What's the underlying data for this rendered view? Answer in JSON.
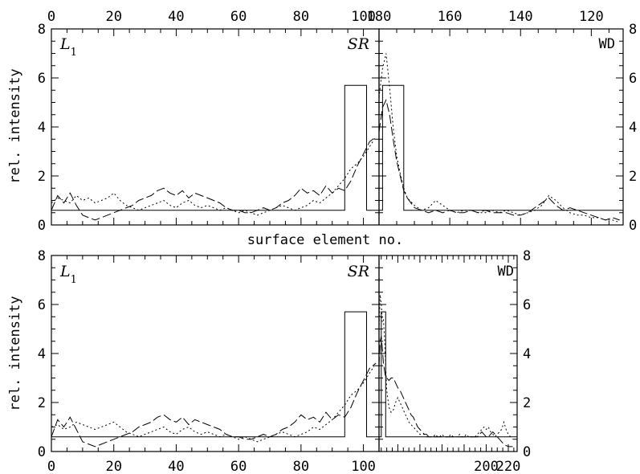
{
  "chart_data": {
    "type": "line",
    "shared_label": "surface element no.",
    "ylabel": "rel. intensity",
    "panels": [
      {
        "id": "top-left",
        "corner_left": "L1",
        "corner_right": "SR",
        "xlim": [
          0,
          105
        ],
        "ylim": [
          0,
          8
        ],
        "xticks_top": [
          0,
          20,
          40,
          60,
          80,
          100
        ],
        "yticks_left": [
          0,
          2,
          4,
          6,
          8
        ],
        "series": [
          {
            "style": "solid",
            "x": [
              0,
              94,
              94,
              101,
              101,
              105
            ],
            "y": [
              0.6,
              0.6,
              5.7,
              5.7,
              0.6,
              0.6
            ]
          },
          {
            "style": "dashed",
            "x": [
              0,
              2,
              4,
              6,
              8,
              10,
              12,
              14,
              16,
              18,
              20,
              22,
              24,
              26,
              28,
              30,
              32,
              34,
              36,
              38,
              40,
              42,
              44,
              46,
              48,
              50,
              52,
              54,
              56,
              58,
              60,
              62,
              64,
              66,
              68,
              70,
              72,
              74,
              76,
              78,
              80,
              82,
              84,
              86,
              88,
              90,
              92,
              94,
              96,
              98,
              100,
              102,
              104
            ],
            "y": [
              0.6,
              1.2,
              0.9,
              1.3,
              0.8,
              0.4,
              0.3,
              0.2,
              0.3,
              0.4,
              0.5,
              0.6,
              0.7,
              0.8,
              1.0,
              1.1,
              1.2,
              1.4,
              1.5,
              1.3,
              1.2,
              1.4,
              1.1,
              1.3,
              1.2,
              1.1,
              1.0,
              0.9,
              0.7,
              0.6,
              0.6,
              0.5,
              0.5,
              0.6,
              0.7,
              0.6,
              0.7,
              0.9,
              1.0,
              1.2,
              1.5,
              1.3,
              1.4,
              1.2,
              1.6,
              1.3,
              1.5,
              1.4,
              1.8,
              2.4,
              2.9,
              3.4,
              3.6
            ]
          },
          {
            "style": "dotted",
            "x": [
              0,
              2,
              4,
              6,
              8,
              10,
              12,
              14,
              16,
              18,
              20,
              22,
              24,
              26,
              28,
              30,
              32,
              34,
              36,
              38,
              40,
              42,
              44,
              46,
              48,
              50,
              52,
              54,
              56,
              58,
              60,
              62,
              64,
              66,
              68,
              70,
              72,
              74,
              76,
              78,
              80,
              82,
              84,
              86,
              88,
              90,
              92,
              94,
              96,
              98,
              100,
              102,
              104
            ],
            "y": [
              0.9,
              1.1,
              1.0,
              0.9,
              1.2,
              1.0,
              1.1,
              0.9,
              1.0,
              1.1,
              1.3,
              1.0,
              0.8,
              0.7,
              0.6,
              0.7,
              0.8,
              0.9,
              1.0,
              0.8,
              0.7,
              0.9,
              1.0,
              0.8,
              0.7,
              0.8,
              0.7,
              0.6,
              0.7,
              0.6,
              0.5,
              0.6,
              0.5,
              0.4,
              0.5,
              0.6,
              0.7,
              0.8,
              0.7,
              0.6,
              0.7,
              0.8,
              1.0,
              0.9,
              1.1,
              1.3,
              1.6,
              1.9,
              2.3,
              2.5,
              2.8,
              3.2,
              3.6
            ]
          }
        ]
      },
      {
        "id": "top-right",
        "corner_right": "WD",
        "xlim": [
          180,
          111
        ],
        "ylim": [
          0,
          8
        ],
        "xticks_top": [
          180,
          160,
          140,
          120
        ],
        "yticks_right": [
          0,
          2,
          4,
          6,
          8
        ],
        "series": [
          {
            "style": "solid",
            "x": [
              180,
              179,
              179,
              173,
              173,
              111
            ],
            "y": [
              0.6,
              0.6,
              5.7,
              5.7,
              0.6,
              0.6
            ]
          },
          {
            "style": "dashed",
            "x": [
              180,
              179,
              178,
              177,
              176,
              175,
              174,
              173,
              172,
              170,
              168,
              166,
              164,
              162,
              160,
              158,
              156,
              154,
              152,
              150,
              148,
              146,
              144,
              142,
              140,
              138,
              136,
              134,
              132,
              130,
              128,
              126,
              124,
              122,
              120,
              118,
              116,
              114,
              112
            ],
            "y": [
              3.8,
              4.8,
              5.1,
              4.5,
              3.5,
              2.6,
              2.0,
              1.4,
              1.1,
              0.7,
              0.6,
              0.5,
              0.6,
              0.5,
              0.6,
              0.5,
              0.5,
              0.6,
              0.5,
              0.6,
              0.5,
              0.5,
              0.5,
              0.4,
              0.4,
              0.5,
              0.7,
              0.9,
              1.1,
              0.8,
              0.6,
              0.7,
              0.6,
              0.5,
              0.4,
              0.3,
              0.2,
              0.3,
              0.2
            ]
          },
          {
            "style": "dotted",
            "x": [
              180,
              179,
              178,
              177,
              176,
              175,
              174,
              173,
              172,
              170,
              168,
              166,
              164,
              162,
              160,
              158,
              156,
              154,
              152,
              150,
              148,
              146,
              144,
              142,
              140,
              138,
              136,
              134,
              132,
              130,
              128,
              126,
              124,
              122,
              120,
              118,
              116,
              114,
              112
            ],
            "y": [
              5.2,
              6.4,
              7.0,
              5.6,
              4.0,
              2.8,
              2.1,
              1.5,
              1.1,
              0.8,
              0.6,
              0.7,
              1.0,
              0.8,
              0.6,
              0.5,
              0.6,
              0.6,
              0.5,
              0.5,
              0.6,
              0.5,
              0.6,
              0.5,
              0.4,
              0.5,
              0.6,
              0.8,
              1.2,
              1.0,
              0.7,
              0.5,
              0.4,
              0.4,
              0.3,
              0.3,
              0.2,
              0.2,
              0.1
            ]
          }
        ]
      },
      {
        "id": "bottom-left",
        "corner_left": "L1",
        "corner_right": "SR",
        "xlim": [
          0,
          105
        ],
        "ylim": [
          0,
          8
        ],
        "xticks_bottom": [
          0,
          20,
          40,
          60,
          80,
          100
        ],
        "yticks_left": [
          0,
          2,
          4,
          6,
          8
        ],
        "series": [
          {
            "style": "solid",
            "x": [
              0,
              94,
              94,
              101,
              101,
              105
            ],
            "y": [
              0.6,
              0.6,
              5.7,
              5.7,
              0.6,
              0.6
            ]
          },
          {
            "style": "dashed",
            "x": [
              0,
              2,
              4,
              6,
              8,
              10,
              12,
              14,
              16,
              18,
              20,
              22,
              24,
              26,
              28,
              30,
              32,
              34,
              36,
              38,
              40,
              42,
              44,
              46,
              48,
              50,
              52,
              54,
              56,
              58,
              60,
              62,
              64,
              66,
              68,
              70,
              72,
              74,
              76,
              78,
              80,
              82,
              84,
              86,
              88,
              90,
              92,
              94,
              96,
              98,
              100,
              102,
              104
            ],
            "y": [
              0.6,
              1.3,
              1.0,
              1.4,
              0.9,
              0.4,
              0.3,
              0.2,
              0.3,
              0.4,
              0.5,
              0.6,
              0.7,
              0.8,
              1.0,
              1.1,
              1.2,
              1.4,
              1.5,
              1.3,
              1.2,
              1.4,
              1.1,
              1.3,
              1.2,
              1.1,
              1.0,
              0.9,
              0.7,
              0.6,
              0.6,
              0.5,
              0.5,
              0.6,
              0.7,
              0.6,
              0.7,
              0.9,
              1.0,
              1.2,
              1.5,
              1.3,
              1.4,
              1.2,
              1.6,
              1.3,
              1.5,
              1.4,
              1.8,
              2.4,
              2.9,
              3.4,
              3.6
            ]
          },
          {
            "style": "dotted",
            "x": [
              0,
              2,
              4,
              6,
              8,
              10,
              12,
              14,
              16,
              18,
              20,
              22,
              24,
              26,
              28,
              30,
              32,
              34,
              36,
              38,
              40,
              42,
              44,
              46,
              48,
              50,
              52,
              54,
              56,
              58,
              60,
              62,
              64,
              66,
              68,
              70,
              72,
              74,
              76,
              78,
              80,
              82,
              84,
              86,
              88,
              90,
              92,
              94,
              96,
              98,
              100,
              102,
              104
            ],
            "y": [
              1.0,
              1.1,
              0.9,
              1.0,
              1.2,
              1.1,
              1.0,
              0.9,
              1.0,
              1.1,
              1.2,
              1.0,
              0.8,
              0.7,
              0.6,
              0.7,
              0.8,
              0.9,
              1.0,
              0.8,
              0.7,
              0.9,
              1.0,
              0.8,
              0.7,
              0.8,
              0.7,
              0.6,
              0.7,
              0.6,
              0.5,
              0.6,
              0.5,
              0.4,
              0.5,
              0.6,
              0.7,
              0.8,
              0.7,
              0.6,
              0.7,
              0.8,
              1.0,
              0.9,
              1.1,
              1.3,
              1.6,
              1.9,
              2.3,
              2.5,
              2.8,
              3.2,
              3.6
            ]
          }
        ]
      },
      {
        "id": "bottom-right",
        "corner_right": "WD",
        "xlim": [
          103,
          228
        ],
        "ylim": [
          0,
          8
        ],
        "xticks_bottom": [
          200,
          220
        ],
        "yticks_right": [
          0,
          2,
          4,
          6,
          8
        ],
        "series": [
          {
            "style": "solid",
            "x": [
              103,
              105,
              105,
              109,
              109,
              228
            ],
            "y": [
              0.6,
              0.6,
              5.7,
              5.7,
              0.6,
              0.6
            ]
          },
          {
            "style": "dashed",
            "x": [
              103,
              104,
              105,
              106,
              107,
              108,
              109,
              110,
              112,
              114,
              116,
              118,
              120,
              122,
              124,
              126,
              128,
              130,
              132,
              134,
              136,
              138,
              140,
              142,
              144,
              146,
              148,
              150,
              152,
              154,
              156,
              158,
              160,
              162,
              164,
              166,
              168,
              170,
              172,
              174,
              176,
              178,
              180,
              182,
              184,
              186,
              188,
              190,
              192,
              194,
              196,
              198,
              200,
              202,
              204,
              206,
              208,
              210,
              212,
              214,
              216,
              218,
              220,
              222,
              224
            ],
            "y": [
              3.5,
              4.5,
              4.7,
              4.2,
              3.6,
              3.3,
              3.0,
              3.0,
              2.9,
              3.0,
              3.0,
              2.8,
              2.6,
              2.5,
              2.3,
              2.1,
              1.9,
              1.7,
              1.5,
              1.4,
              1.2,
              1.0,
              0.9,
              0.8,
              0.7,
              0.7,
              0.6,
              0.6,
              0.6,
              0.6,
              0.6,
              0.6,
              0.6,
              0.6,
              0.6,
              0.6,
              0.6,
              0.6,
              0.6,
              0.6,
              0.6,
              0.6,
              0.6,
              0.6,
              0.6,
              0.6,
              0.6,
              0.6,
              0.6,
              0.7,
              0.8,
              0.7,
              0.6,
              0.6,
              0.7,
              0.8,
              0.7,
              0.6,
              0.5,
              0.4,
              0.3,
              0.25,
              0.2,
              0.2,
              0.2
            ]
          },
          {
            "style": "dotted",
            "x": [
              103,
              104,
              105,
              106,
              107,
              108,
              109,
              110,
              112,
              114,
              116,
              118,
              120,
              122,
              124,
              126,
              128,
              130,
              132,
              134,
              136,
              138,
              140,
              142,
              144,
              146,
              148,
              150,
              152,
              154,
              156,
              158,
              160,
              162,
              164,
              166,
              168,
              170,
              172,
              174,
              176,
              178,
              180,
              182,
              184,
              186,
              188,
              190,
              192,
              194,
              196,
              198,
              200,
              202,
              204,
              206,
              208,
              210,
              212,
              214,
              216,
              218,
              220,
              222,
              224
            ],
            "y": [
              5.0,
              6.4,
              6.0,
              5.3,
              5.4,
              4.6,
              3.5,
              2.5,
              1.8,
              1.6,
              1.7,
              2.0,
              2.2,
              2.0,
              1.8,
              1.6,
              1.4,
              1.2,
              1.1,
              1.0,
              0.9,
              0.8,
              0.7,
              0.7,
              0.7,
              0.6,
              0.6,
              0.6,
              0.6,
              0.7,
              0.6,
              0.6,
              0.7,
              0.6,
              0.6,
              0.6,
              0.7,
              0.6,
              0.6,
              0.6,
              0.7,
              0.6,
              0.6,
              0.7,
              0.6,
              0.6,
              0.6,
              0.6,
              0.7,
              0.8,
              0.9,
              1.0,
              0.9,
              1.0,
              0.8,
              0.7,
              0.6,
              0.7,
              0.8,
              0.9,
              1.2,
              0.9,
              0.7,
              0.6,
              0.5
            ]
          }
        ]
      }
    ]
  }
}
